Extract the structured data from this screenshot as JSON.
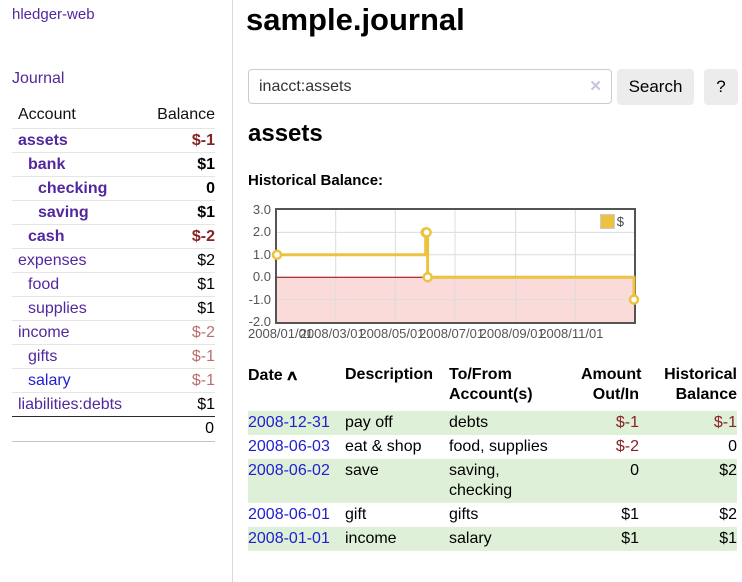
{
  "sidebar": {
    "app_title": "hledger-web",
    "journal_label": "Journal",
    "accounts_table": {
      "headers": {
        "account": "Account",
        "balance": "Balance"
      },
      "rows": [
        {
          "name": "assets",
          "balance": "$-1",
          "level": 0,
          "emph": true,
          "balance_tone": "neg-strong",
          "link_tone": "purple"
        },
        {
          "name": "bank",
          "balance": "$1",
          "level": 1,
          "emph": true,
          "balance_tone": "plain",
          "link_tone": "purple"
        },
        {
          "name": "checking",
          "balance": "0",
          "level": 2,
          "emph": true,
          "balance_tone": "plain",
          "link_tone": "purple"
        },
        {
          "name": "saving",
          "balance": "$1",
          "level": 2,
          "emph": true,
          "balance_tone": "plain",
          "link_tone": "purple"
        },
        {
          "name": "cash",
          "balance": "$-2",
          "level": 1,
          "emph": true,
          "balance_tone": "neg-strong",
          "link_tone": "purple"
        },
        {
          "name": "expenses",
          "balance": "$2",
          "level": 0,
          "emph": false,
          "balance_tone": "plain",
          "link_tone": "purple"
        },
        {
          "name": "food",
          "balance": "$1",
          "level": 1,
          "emph": false,
          "balance_tone": "plain",
          "link_tone": "purple"
        },
        {
          "name": "supplies",
          "balance": "$1",
          "level": 1,
          "emph": false,
          "balance_tone": "plain",
          "link_tone": "purple"
        },
        {
          "name": "income",
          "balance": "$-2",
          "level": 0,
          "emph": false,
          "balance_tone": "neg-light",
          "link_tone": "purple"
        },
        {
          "name": "gifts",
          "balance": "$-1",
          "level": 1,
          "emph": false,
          "balance_tone": "neg-light",
          "link_tone": "purple"
        },
        {
          "name": "salary",
          "balance": "$-1",
          "level": 1,
          "emph": false,
          "balance_tone": "neg-light",
          "link_tone": "blue"
        },
        {
          "name": "liabilities:debts",
          "balance": "$1",
          "level": 0,
          "emph": false,
          "balance_tone": "plain",
          "link_tone": "purple"
        }
      ],
      "total": "0"
    }
  },
  "main": {
    "title": "sample.journal",
    "search": {
      "value": "inacct:assets",
      "clear_icon": "✕",
      "button_label": "Search",
      "help_label": "?"
    },
    "account_heading": "assets",
    "chart_heading": "Historical Balance:",
    "register": {
      "headers": {
        "date": "Date",
        "sort_icon": "∧",
        "description": "Description",
        "accounts": "To/From Account(s)",
        "amount": "Amount Out/In",
        "balance": "Historical Balance"
      },
      "rows": [
        {
          "date": "2008-12-31",
          "description": "pay off",
          "accounts": "debts",
          "amount": "$-1",
          "amount_tone": "neg",
          "balance": "$-1",
          "balance_tone": "neg"
        },
        {
          "date": "2008-06-03",
          "description": "eat & shop",
          "accounts": "food, supplies",
          "amount": "$-2",
          "amount_tone": "neg",
          "balance": "0",
          "balance_tone": "plain"
        },
        {
          "date": "2008-06-02",
          "description": "save",
          "accounts": "saving, checking",
          "amount": "0",
          "amount_tone": "plain",
          "balance": "$2",
          "balance_tone": "plain"
        },
        {
          "date": "2008-06-01",
          "description": "gift",
          "accounts": "gifts",
          "amount": "$1",
          "amount_tone": "plain",
          "balance": "$2",
          "balance_tone": "plain"
        },
        {
          "date": "2008-01-01",
          "description": "income",
          "accounts": "salary",
          "amount": "$1",
          "amount_tone": "plain",
          "balance": "$1",
          "balance_tone": "plain"
        }
      ]
    }
  },
  "chart_data": {
    "type": "line",
    "step": true,
    "title": "Historical Balance",
    "series": [
      {
        "name": "$",
        "color": "#edc240",
        "x": [
          "2008-01-01",
          "2008-06-01",
          "2008-06-02",
          "2008-06-03",
          "2008-12-31"
        ],
        "y": [
          1,
          2,
          2,
          0,
          -1
        ]
      }
    ],
    "x_range": [
      "2008-01-01",
      "2008-12-31"
    ],
    "ylim": [
      -2,
      3
    ],
    "y_ticks": [
      {
        "label": "3.0",
        "value": 3
      },
      {
        "label": "2.0",
        "value": 2
      },
      {
        "label": "1.0",
        "value": 1
      },
      {
        "label": "0.0",
        "value": 0
      },
      {
        "label": "-1.0",
        "value": -1
      },
      {
        "label": "-2.0",
        "value": -2
      }
    ],
    "x_ticks": [
      {
        "label": "2008/01/01",
        "date": "2008-01-01"
      },
      {
        "label": "2008/03/01",
        "date": "2008-03-01"
      },
      {
        "label": "2008/05/01",
        "date": "2008-05-01"
      },
      {
        "label": "2008/07/01",
        "date": "2008-07-01"
      },
      {
        "label": "2008/09/01",
        "date": "2008-09-01"
      },
      {
        "label": "2008/11/01",
        "date": "2008-11-01"
      }
    ],
    "legend": {
      "label": "$",
      "position": "top-right"
    },
    "grid": true,
    "grid_color": "#dcdcdc",
    "border_color": "#545454",
    "zero_line_color": "#8b0000",
    "negative_region_fill": "#fbdada"
  },
  "colors": {
    "link_purple": "#53279d",
    "link_blue": "#2020d0",
    "negative_strong": "#872222",
    "negative_light": "#bd6e6e",
    "row_green": "#dff0d8",
    "chart_line": "#edc240"
  }
}
